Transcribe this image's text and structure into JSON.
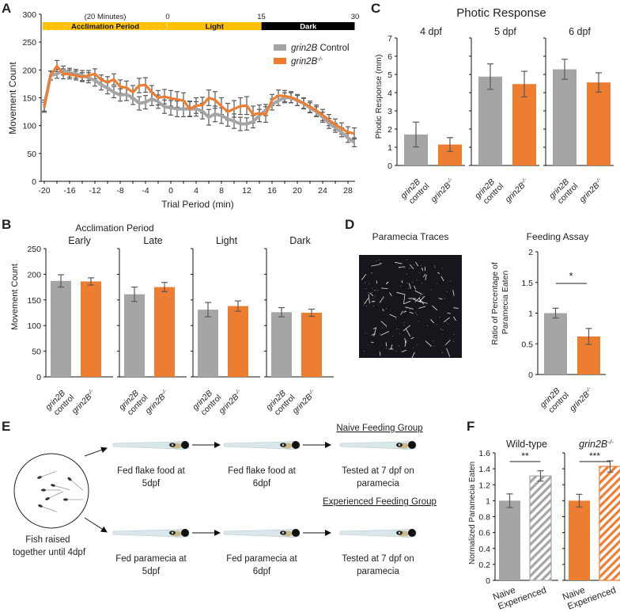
{
  "panel_labels": [
    "A",
    "B",
    "C",
    "D",
    "E",
    "F"
  ],
  "colors": {
    "control": "#a5a5a5",
    "mutant": "#ed7d31",
    "errorbar": "#595959",
    "period_yellow": "#ffc000",
    "period_dark": "#000000"
  },
  "chart_data": [
    {
      "id": "A",
      "type": "line",
      "xlabel": "Trial Period (min)",
      "ylabel": "Movement Count",
      "ylim": [
        0,
        300
      ],
      "yticks": [
        0,
        50,
        100,
        150,
        200,
        250,
        300
      ],
      "xlim": [
        -20,
        29
      ],
      "xticks": [
        -20,
        -16,
        -12,
        -8,
        -4,
        0,
        4,
        8,
        12,
        16,
        20,
        24,
        28
      ],
      "period_bar": {
        "segments": [
          {
            "label": "Acclimation Period",
            "from": -20,
            "to": 0,
            "style": "yellow-dotted"
          },
          {
            "label": "Light",
            "from": 0,
            "to": 15,
            "style": "yellow"
          },
          {
            "label": "Dark",
            "from": 15,
            "to": 30,
            "style": "black"
          }
        ],
        "top_labels": [
          {
            "text": "(20 Minutes)",
            "at": -10
          },
          {
            "text": "0",
            "at": 0
          },
          {
            "text": "15",
            "at": 15
          },
          {
            "text": "30",
            "at": 30
          }
        ]
      },
      "legend": {
        "position": "top-right",
        "entries": [
          {
            "italic": "grin2B",
            "text": " Control",
            "series": 0
          },
          {
            "italic": "grin2B",
            "sup": "-/-",
            "series": 1
          }
        ]
      },
      "x": [
        -20,
        -19,
        -18,
        -17,
        -16,
        -15,
        -14,
        -13,
        -12,
        -11,
        -10,
        -9,
        -8,
        -7,
        -6,
        -5,
        -4,
        -3,
        -2,
        -1,
        0,
        1,
        2,
        3,
        4,
        5,
        6,
        7,
        8,
        9,
        10,
        11,
        12,
        13,
        14,
        15,
        16,
        17,
        18,
        19,
        20,
        21,
        22,
        23,
        24,
        25,
        26,
        27,
        28,
        29
      ],
      "series": [
        {
          "name": "grin2B Control",
          "values": [
            136,
            190,
            193,
            199,
            195,
            193,
            190,
            186,
            181,
            174,
            167,
            160,
            155,
            156,
            150,
            140,
            142,
            148,
            143,
            134,
            132,
            130,
            130,
            130,
            130,
            126,
            115,
            121,
            118,
            112,
            108,
            103,
            103,
            107,
            118,
            128,
            138,
            145,
            150,
            150,
            145,
            140,
            132,
            125,
            115,
            104,
            96,
            88,
            78,
            70
          ],
          "errors": [
            10,
            8,
            8,
            8,
            8,
            8,
            9,
            9,
            10,
            10,
            10,
            10,
            11,
            11,
            12,
            12,
            12,
            12,
            12,
            12,
            13,
            14,
            14,
            13,
            13,
            14,
            14,
            14,
            14,
            13,
            13,
            12,
            11,
            11,
            11,
            10,
            10,
            9,
            9,
            9,
            9,
            9,
            9,
            9,
            9,
            9,
            8,
            8,
            8,
            8
          ]
        },
        {
          "name": "grin2B-/-",
          "values": [
            133,
            190,
            207,
            193,
            192,
            190,
            187,
            190,
            193,
            182,
            178,
            183,
            170,
            168,
            160,
            172,
            173,
            160,
            150,
            152,
            149,
            147,
            145,
            130,
            136,
            137,
            150,
            146,
            135,
            125,
            130,
            135,
            136,
            120,
            122,
            120,
            146,
            154,
            153,
            151,
            146,
            140,
            134,
            127,
            119,
            110,
            102,
            95,
            88,
            86
          ],
          "errors": [
            9,
            8,
            10,
            9,
            8,
            8,
            8,
            9,
            9,
            9,
            10,
            10,
            12,
            12,
            12,
            13,
            13,
            12,
            13,
            13,
            14,
            14,
            14,
            14,
            14,
            14,
            14,
            15,
            15,
            15,
            15,
            15,
            16,
            15,
            15,
            14,
            10,
            10,
            10,
            10,
            10,
            10,
            10,
            10,
            10,
            10,
            10,
            10,
            10,
            10
          ]
        }
      ]
    },
    {
      "id": "B",
      "type": "bar",
      "title": "Acclimation Period",
      "ylabel": "Movement Count",
      "ylim": [
        0,
        250
      ],
      "yticks": [
        0,
        50,
        100,
        150,
        200,
        250
      ],
      "categories": [
        {
          "line1": "grin2B",
          "line2": "control"
        },
        {
          "line1": "grin2B",
          "sup": "-/-"
        }
      ],
      "facets": [
        {
          "title": "Early",
          "values": [
            187,
            186
          ],
          "errors": [
            12,
            7
          ]
        },
        {
          "title": "Late",
          "values": [
            161,
            175
          ],
          "errors": [
            14,
            9
          ]
        },
        {
          "title": "Light",
          "values": [
            131,
            138
          ],
          "errors": [
            14,
            10
          ]
        },
        {
          "title": "Dark",
          "values": [
            126,
            125
          ],
          "errors": [
            9,
            7
          ]
        }
      ]
    },
    {
      "id": "C",
      "type": "bar",
      "title": "Photic Response",
      "ylabel": "Photic Response (mm)",
      "ylim": [
        0,
        7
      ],
      "yticks": [
        0,
        1,
        2,
        3,
        4,
        5,
        6,
        7
      ],
      "categories": [
        {
          "line1": "grin2B",
          "line2": "control"
        },
        {
          "line1": "grin2B",
          "sup": "-/-"
        }
      ],
      "facets": [
        {
          "title": "4 dpf",
          "values": [
            1.7,
            1.15
          ],
          "errors": [
            0.68,
            0.38
          ]
        },
        {
          "title": "5 dpf",
          "values": [
            4.88,
            4.47
          ],
          "errors": [
            0.7,
            0.7
          ]
        },
        {
          "title": "6 dpf",
          "values": [
            5.28,
            4.56
          ],
          "errors": [
            0.55,
            0.53
          ]
        }
      ]
    },
    {
      "id": "D",
      "type": "bar",
      "title": "Feeding Assay",
      "ylabel": "Ratio of Percentage of\nParamecia Eaten",
      "ylabel_lines": [
        "Ratio of Percentage of",
        "Paramecia Eaten"
      ],
      "ylim": [
        0,
        2
      ],
      "yticks": [
        "0",
        "0.5",
        "1",
        "1.5",
        "2"
      ],
      "categories": [
        {
          "line1": "grin2B",
          "line2": "control"
        },
        {
          "line1": "grin2B",
          "sup": "-/-"
        }
      ],
      "values": [
        1.0,
        0.62
      ],
      "errors": [
        0.08,
        0.13
      ],
      "significance": "*"
    },
    {
      "id": "F",
      "type": "bar",
      "ylabel": "Normalized Paramecia Eaten",
      "ylim": [
        0,
        1.6
      ],
      "yticks": [
        "0",
        "0.2",
        "0.4",
        "0.6",
        "0.8",
        "1",
        "1.2",
        "1.4",
        "1.6"
      ],
      "categories": [
        "Naive",
        "Experienced"
      ],
      "facets": [
        {
          "title": "Wild-type",
          "italic": false,
          "values": [
            1.0,
            1.31
          ],
          "errors": [
            0.085,
            0.065
          ],
          "significance": "**",
          "color": "control"
        },
        {
          "title": "grin2B",
          "sup": "-/-",
          "italic": true,
          "values": [
            1.0,
            1.43
          ],
          "errors": [
            0.08,
            0.07
          ],
          "significance": "***",
          "color": "mutant"
        }
      ]
    }
  ],
  "panel_d_image": {
    "title": "Paramecia Traces"
  },
  "panel_e": {
    "start_label": [
      "Fish raised",
      "together until 4dpf"
    ],
    "rows": [
      {
        "group": "Naive Feeding Group",
        "steps": [
          [
            "Fed flake food at",
            "5dpf"
          ],
          [
            "Fed flake food at",
            "6dpf"
          ],
          [
            "Tested at 7 dpf on",
            "paramecia"
          ]
        ]
      },
      {
        "group": "Experienced Feeding Group",
        "steps": [
          [
            "Fed paramecia at",
            "5dpf"
          ],
          [
            "Fed paramecia at",
            "6dpf"
          ],
          [
            "Tested at 7 dpf on",
            "paramecia"
          ]
        ]
      }
    ]
  }
}
